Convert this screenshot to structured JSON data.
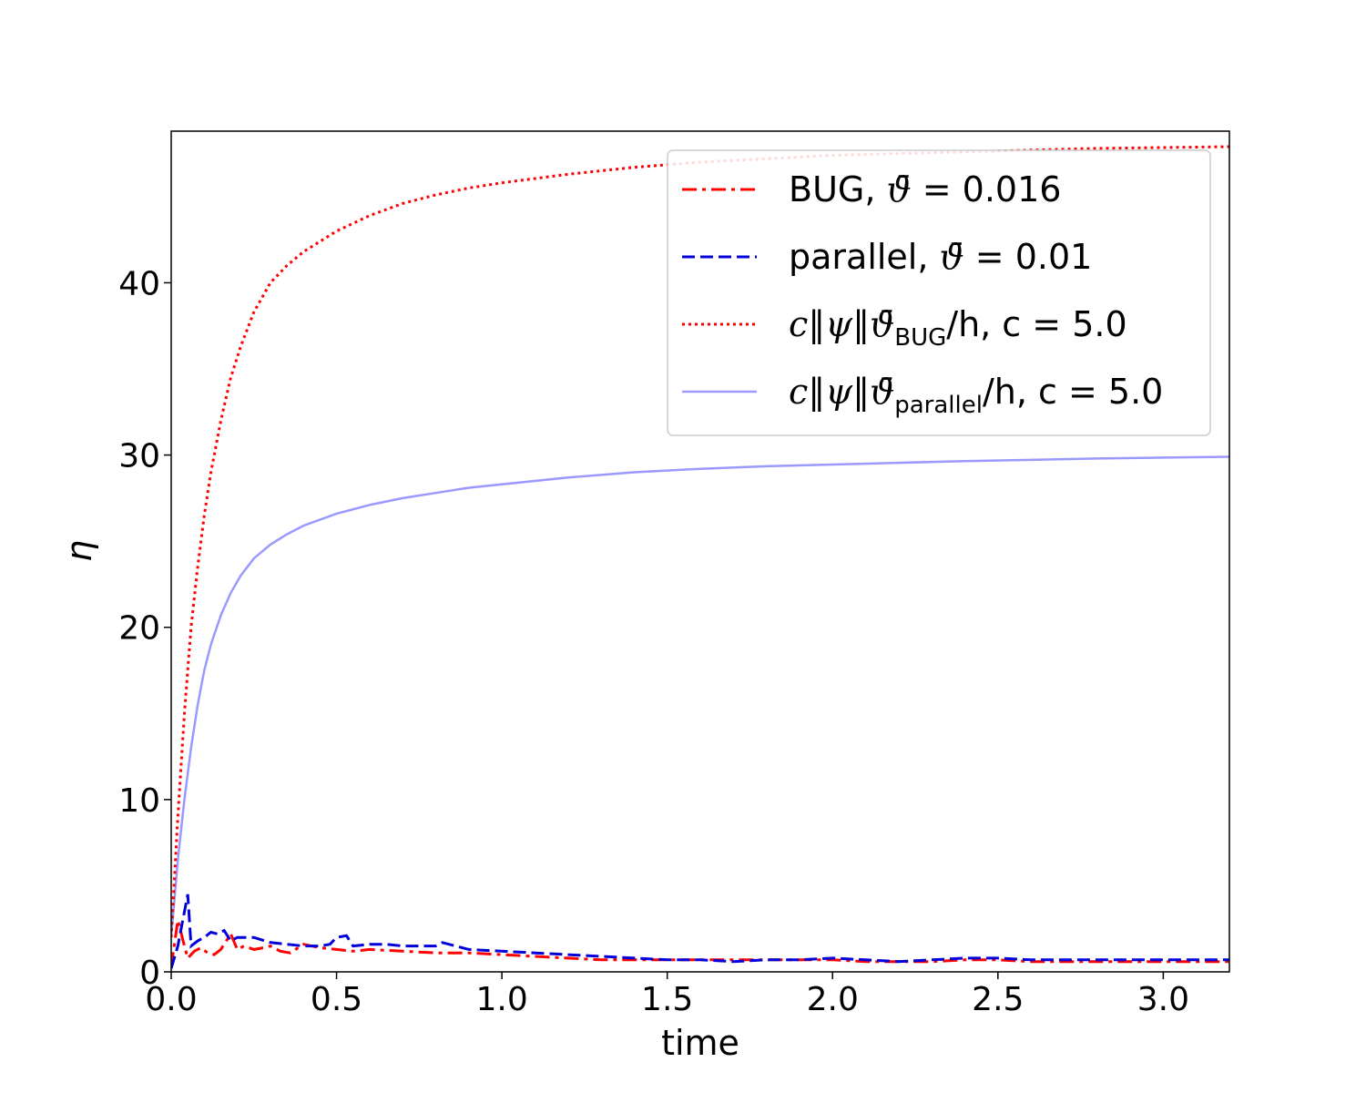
{
  "chart_data": {
    "type": "line",
    "title": "",
    "xlabel": "time",
    "ylabel": "η",
    "xlim": [
      0.0,
      3.2
    ],
    "ylim": [
      0,
      48.8
    ],
    "xticks": [
      0.0,
      0.5,
      1.0,
      1.5,
      2.0,
      2.5,
      3.0
    ],
    "xtick_labels": [
      "0.0",
      "0.5",
      "1.0",
      "1.5",
      "2.0",
      "2.5",
      "3.0"
    ],
    "yticks": [
      0,
      10,
      20,
      30,
      40
    ],
    "ytick_labels": [
      "0",
      "10",
      "20",
      "30",
      "40"
    ],
    "grid": false,
    "legend_position": "top-right",
    "series": [
      {
        "name": "BUG, ϑ̄ = 0.016",
        "legend": {
          "prefix": "BUG, ",
          "sym": "ϑ̄",
          "rest": " =  0.016"
        },
        "color": "#ff0000",
        "style": "dashdot",
        "x": [
          0.0,
          0.02,
          0.04,
          0.05,
          0.07,
          0.09,
          0.11,
          0.13,
          0.15,
          0.18,
          0.2,
          0.22,
          0.25,
          0.28,
          0.3,
          0.33,
          0.36,
          0.4,
          0.45,
          0.5,
          0.55,
          0.6,
          0.7,
          0.8,
          0.9,
          1.0,
          1.1,
          1.2,
          1.3,
          1.4,
          1.5,
          1.6,
          1.7,
          1.8,
          1.9,
          2.0,
          2.1,
          2.2,
          2.3,
          2.4,
          2.5,
          2.6,
          2.7,
          2.8,
          2.9,
          3.0,
          3.1,
          3.2
        ],
        "y": [
          0.3,
          3.0,
          1.5,
          0.8,
          1.2,
          1.4,
          1.1,
          1.0,
          1.3,
          2.2,
          1.3,
          1.5,
          1.3,
          1.4,
          1.5,
          1.2,
          1.1,
          1.6,
          1.4,
          1.3,
          1.2,
          1.3,
          1.2,
          1.1,
          1.1,
          1.0,
          0.9,
          0.8,
          0.7,
          0.7,
          0.7,
          0.7,
          0.7,
          0.7,
          0.7,
          0.7,
          0.6,
          0.6,
          0.6,
          0.7,
          0.7,
          0.6,
          0.6,
          0.6,
          0.6,
          0.6,
          0.6,
          0.6
        ]
      },
      {
        "name": "parallel, ϑ̄ = 0.01",
        "legend": {
          "prefix": "parallel, ",
          "sym": "ϑ̄",
          "rest": " =  0.01"
        },
        "color": "#0000dd",
        "style": "dashed",
        "x": [
          0.0,
          0.02,
          0.03,
          0.05,
          0.06,
          0.08,
          0.1,
          0.12,
          0.14,
          0.16,
          0.18,
          0.2,
          0.25,
          0.3,
          0.35,
          0.4,
          0.45,
          0.48,
          0.5,
          0.53,
          0.55,
          0.6,
          0.65,
          0.7,
          0.8,
          0.82,
          0.9,
          1.0,
          1.1,
          1.2,
          1.3,
          1.4,
          1.5,
          1.6,
          1.7,
          1.8,
          1.9,
          2.0,
          2.1,
          2.2,
          2.3,
          2.4,
          2.5,
          2.6,
          2.7,
          2.8,
          2.9,
          3.0,
          3.1,
          3.2
        ],
        "y": [
          0.2,
          1.5,
          2.5,
          4.5,
          1.5,
          1.8,
          2.0,
          2.3,
          2.2,
          2.4,
          1.8,
          2.0,
          2.0,
          1.7,
          1.6,
          1.5,
          1.5,
          1.6,
          2.0,
          2.1,
          1.5,
          1.6,
          1.6,
          1.5,
          1.5,
          1.7,
          1.3,
          1.2,
          1.1,
          1.0,
          0.9,
          0.8,
          0.7,
          0.7,
          0.6,
          0.7,
          0.7,
          0.8,
          0.7,
          0.6,
          0.7,
          0.8,
          0.8,
          0.7,
          0.7,
          0.7,
          0.7,
          0.7,
          0.7,
          0.7
        ]
      },
      {
        "name": "c‖ψ‖ϑ̄_BUG/h, c = 5.0",
        "legend": {
          "prefix": "",
          "sym": "c‖ψ‖ϑ̄",
          "sub": "BUG",
          "rest": "/h, c =  5.0"
        },
        "color": "#ff0000",
        "style": "dotted",
        "x": [
          0.0,
          0.02,
          0.04,
          0.06,
          0.08,
          0.1,
          0.12,
          0.15,
          0.18,
          0.21,
          0.25,
          0.3,
          0.35,
          0.4,
          0.5,
          0.6,
          0.7,
          0.8,
          0.9,
          1.0,
          1.2,
          1.4,
          1.6,
          1.8,
          2.0,
          2.2,
          2.4,
          2.6,
          2.8,
          3.0,
          3.2
        ],
        "y": [
          2.0,
          9.0,
          15.0,
          20.0,
          23.5,
          26.5,
          29.0,
          32.0,
          34.5,
          36.3,
          38.3,
          40.0,
          41.0,
          41.8,
          43.0,
          43.9,
          44.6,
          45.1,
          45.5,
          45.8,
          46.3,
          46.7,
          47.0,
          47.2,
          47.4,
          47.5,
          47.6,
          47.7,
          47.8,
          47.85,
          47.9
        ]
      },
      {
        "name": "c‖ψ‖ϑ̄_parallel/h, c = 5.0",
        "legend": {
          "prefix": "",
          "sym": "c‖ψ‖ϑ̄",
          "sub": "parallel",
          "rest": "/h, c =  5.0"
        },
        "color": "#9999ff",
        "style": "solid",
        "x": [
          0.0,
          0.02,
          0.04,
          0.06,
          0.08,
          0.1,
          0.12,
          0.15,
          0.18,
          0.21,
          0.25,
          0.3,
          0.35,
          0.4,
          0.5,
          0.6,
          0.7,
          0.8,
          0.9,
          1.0,
          1.2,
          1.4,
          1.6,
          1.8,
          2.0,
          2.2,
          2.4,
          2.6,
          2.8,
          3.0,
          3.2
        ],
        "y": [
          2.0,
          6.5,
          10.0,
          13.0,
          15.5,
          17.5,
          19.0,
          20.7,
          22.0,
          23.0,
          24.0,
          24.8,
          25.4,
          25.9,
          26.6,
          27.1,
          27.5,
          27.8,
          28.1,
          28.3,
          28.7,
          29.0,
          29.2,
          29.35,
          29.45,
          29.55,
          29.65,
          29.72,
          29.8,
          29.85,
          29.9
        ]
      }
    ]
  }
}
